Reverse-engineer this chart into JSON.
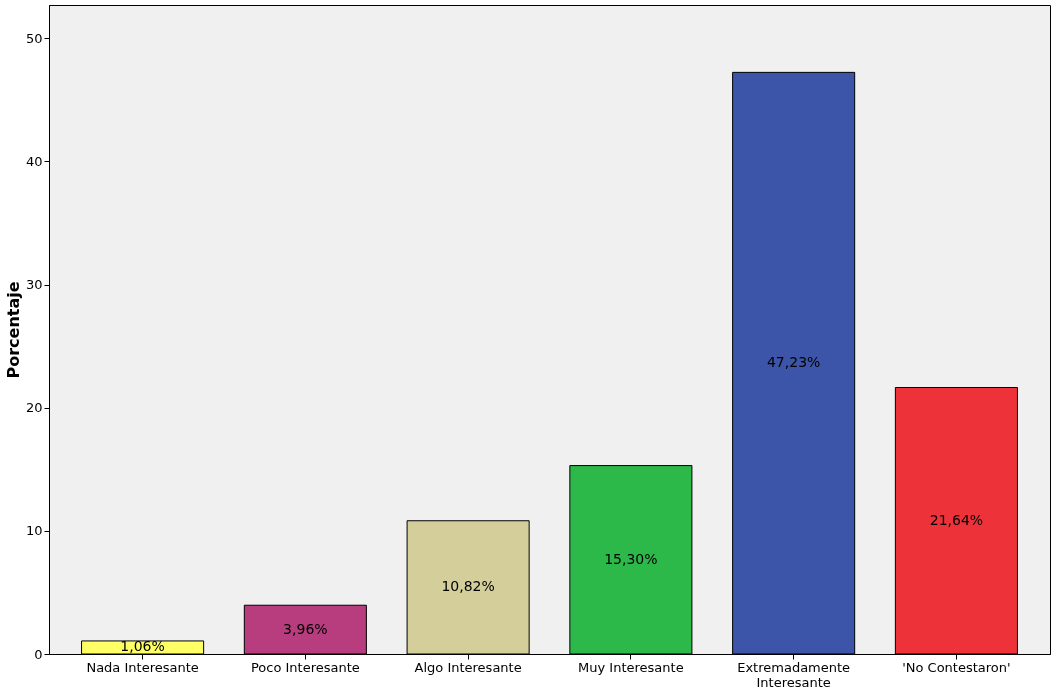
{
  "chart_data": {
    "type": "bar",
    "ylabel": "Porcentaje",
    "categories": [
      "Nada Interesante",
      "Poco Interesante",
      "Algo Interesante",
      "Muy Interesante",
      "Extremadamente Interesante",
      "'No Contestaron'"
    ],
    "values": [
      1.06,
      3.96,
      10.82,
      15.3,
      47.23,
      21.64
    ],
    "colors": [
      "#ffff66",
      "#b83d7e",
      "#d4cf9a",
      "#2db84a",
      "#3d55a8",
      "#ee3239"
    ],
    "value_labels": [
      "1,06%",
      "3,96%",
      "10,82%",
      "15,30%",
      "47,23%",
      "21,64%"
    ],
    "ylim": [
      0,
      52.7
    ],
    "yticks": [
      0,
      10,
      20,
      30,
      40,
      50
    ],
    "grid": false
  }
}
